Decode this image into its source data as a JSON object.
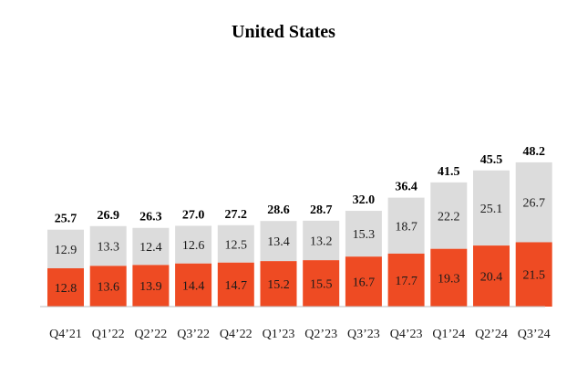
{
  "chart_data": {
    "type": "bar",
    "stacked": true,
    "title": "United States",
    "xlabel": "",
    "ylabel": "",
    "ylim": [
      0,
      50
    ],
    "grid": false,
    "legend": "none",
    "categories": [
      "Q4’21",
      "Q1’22",
      "Q2’22",
      "Q3’22",
      "Q4’22",
      "Q1’23",
      "Q2’23",
      "Q3’23",
      "Q4’23",
      "Q1’24",
      "Q2’24",
      "Q3’24"
    ],
    "series": [
      {
        "name": "bottom",
        "color": "#ee4b23",
        "values": [
          12.8,
          13.6,
          13.9,
          14.4,
          14.7,
          15.2,
          15.5,
          16.7,
          17.7,
          19.3,
          20.4,
          21.5
        ],
        "labels": [
          "12.8",
          "13.6",
          "13.9",
          "14.4",
          "14.7",
          "15.2",
          "15.5",
          "16.7",
          "17.7",
          "19.3",
          "20.4",
          "21.5"
        ]
      },
      {
        "name": "top",
        "color": "#dcdcdc",
        "values": [
          12.9,
          13.3,
          12.4,
          12.6,
          12.5,
          13.4,
          13.2,
          15.3,
          18.7,
          22.2,
          25.1,
          26.7
        ],
        "labels": [
          "12.9",
          "13.3",
          "12.4",
          "12.6",
          "12.5",
          "13.4",
          "13.2",
          "15.3",
          "18.7",
          "22.2",
          "25.1",
          "26.7"
        ]
      }
    ],
    "totals": [
      "25.7",
      "26.9",
      "26.3",
      "27.0",
      "27.2",
      "28.6",
      "28.7",
      "32.0",
      "36.4",
      "41.5",
      "45.5",
      "48.2"
    ]
  }
}
